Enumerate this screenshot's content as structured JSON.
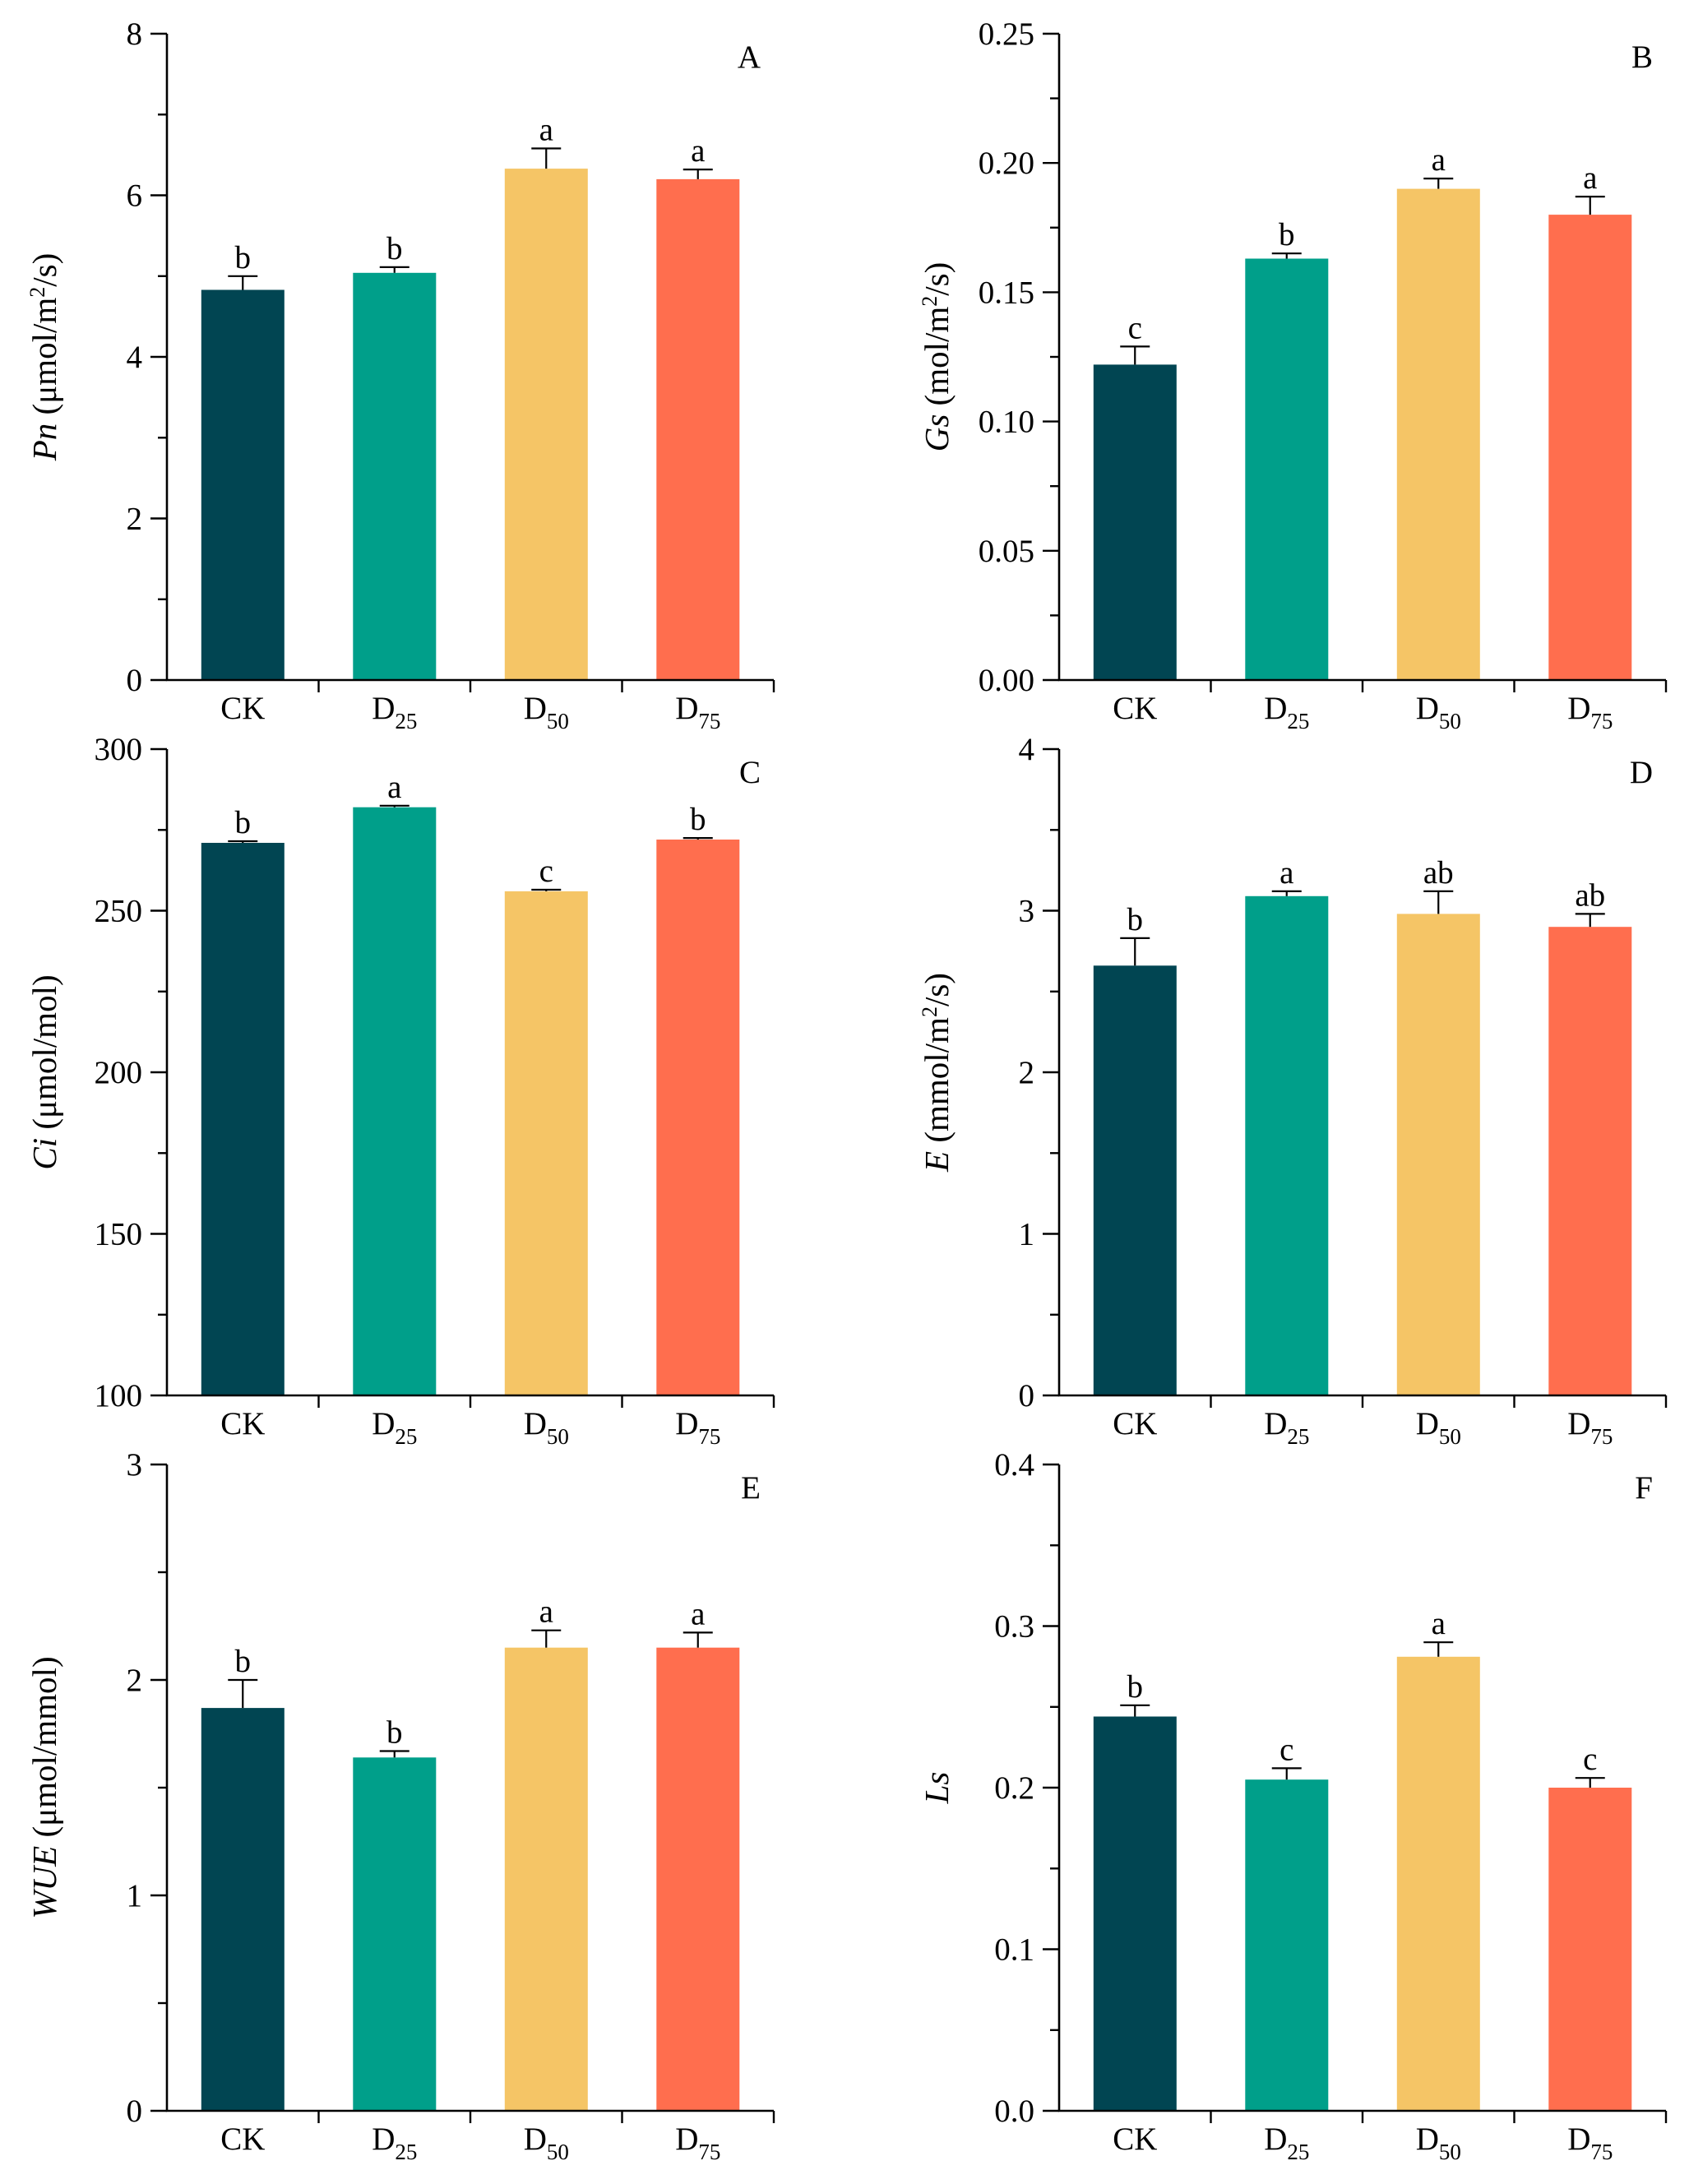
{
  "chart_data": [
    {
      "type": "bar",
      "panel": "A",
      "ylabel": [
        {
          "t": "Pn",
          "italic": true
        },
        {
          "t": " (μmol/m"
        },
        {
          "t": "2",
          "sup": true
        },
        {
          "t": "/s)"
        }
      ],
      "ylim": [
        0,
        8
      ],
      "major_step": 2,
      "minor_step": 1,
      "decimals": 0,
      "categories": [
        {
          "base": "CK",
          "sub": ""
        },
        {
          "base": "D",
          "sub": "25"
        },
        {
          "base": "D",
          "sub": "50"
        },
        {
          "base": "D",
          "sub": "75"
        }
      ],
      "values": [
        4.83,
        5.04,
        6.33,
        6.2
      ],
      "errors": [
        0.17,
        0.07,
        0.25,
        0.12
      ],
      "letters": [
        "b",
        "b",
        "a",
        "a"
      ],
      "colors": [
        "#014552",
        "#009F8A",
        "#F5C566",
        "#FF6E4E"
      ]
    },
    {
      "type": "bar",
      "panel": "B",
      "ylabel": [
        {
          "t": "Gs",
          "italic": true
        },
        {
          "t": " (mol/m"
        },
        {
          "t": "2",
          "sup": true
        },
        {
          "t": "/s)"
        }
      ],
      "ylim": [
        0,
        0.25
      ],
      "major_step": 0.05,
      "minor_step": 0.025,
      "decimals": 2,
      "categories": [
        {
          "base": "CK",
          "sub": ""
        },
        {
          "base": "D",
          "sub": "25"
        },
        {
          "base": "D",
          "sub": "50"
        },
        {
          "base": "D",
          "sub": "75"
        }
      ],
      "values": [
        0.122,
        0.163,
        0.19,
        0.18
      ],
      "errors": [
        0.007,
        0.002,
        0.004,
        0.007
      ],
      "letters": [
        "c",
        "b",
        "a",
        "a"
      ],
      "colors": [
        "#014552",
        "#009F8A",
        "#F5C566",
        "#FF6E4E"
      ]
    },
    {
      "type": "bar",
      "panel": "C",
      "ylabel": [
        {
          "t": "Ci",
          "italic": true
        },
        {
          "t": " (μmol/mol)"
        }
      ],
      "ylim": [
        100,
        300
      ],
      "major_step": 50,
      "minor_step": 25,
      "decimals": 0,
      "categories": [
        {
          "base": "CK",
          "sub": ""
        },
        {
          "base": "D",
          "sub": "25"
        },
        {
          "base": "D",
          "sub": "50"
        },
        {
          "base": "D",
          "sub": "75"
        }
      ],
      "values": [
        271,
        282,
        256,
        272
      ],
      "errors": [
        0.5,
        0.5,
        0.5,
        0.5
      ],
      "letters": [
        "b",
        "a",
        "c",
        "b"
      ],
      "colors": [
        "#014552",
        "#009F8A",
        "#F5C566",
        "#FF6E4E"
      ]
    },
    {
      "type": "bar",
      "panel": "D",
      "ylabel": [
        {
          "t": "E",
          "italic": true
        },
        {
          "t": " (mmol/m"
        },
        {
          "t": "2",
          "sup": true
        },
        {
          "t": "/s)"
        }
      ],
      "ylim": [
        0,
        4
      ],
      "major_step": 1,
      "minor_step": 0.5,
      "decimals": 0,
      "categories": [
        {
          "base": "CK",
          "sub": ""
        },
        {
          "base": "D",
          "sub": "25"
        },
        {
          "base": "D",
          "sub": "50"
        },
        {
          "base": "D",
          "sub": "75"
        }
      ],
      "values": [
        2.66,
        3.09,
        2.98,
        2.9
      ],
      "errors": [
        0.17,
        0.03,
        0.14,
        0.08
      ],
      "letters": [
        "b",
        "a",
        "ab",
        "ab"
      ],
      "colors": [
        "#014552",
        "#009F8A",
        "#F5C566",
        "#FF6E4E"
      ]
    },
    {
      "type": "bar",
      "panel": "E",
      "ylabel": [
        {
          "t": "WUE",
          "italic": true
        },
        {
          "t": " (μmol/mmol)"
        }
      ],
      "ylim": [
        0,
        3
      ],
      "major_step": 1,
      "minor_step": 0.5,
      "decimals": 0,
      "categories": [
        {
          "base": "CK",
          "sub": ""
        },
        {
          "base": "D",
          "sub": "25"
        },
        {
          "base": "D",
          "sub": "50"
        },
        {
          "base": "D",
          "sub": "75"
        }
      ],
      "values": [
        1.87,
        1.64,
        2.15,
        2.15
      ],
      "errors": [
        0.13,
        0.03,
        0.08,
        0.07
      ],
      "letters": [
        "b",
        "b",
        "a",
        "a"
      ],
      "colors": [
        "#014552",
        "#009F8A",
        "#F5C566",
        "#FF6E4E"
      ]
    },
    {
      "type": "bar",
      "panel": "F",
      "ylabel": [
        {
          "t": "Ls",
          "italic": true
        }
      ],
      "ylim": [
        0,
        0.4
      ],
      "major_step": 0.1,
      "minor_step": 0.05,
      "decimals": 1,
      "categories": [
        {
          "base": "CK",
          "sub": ""
        },
        {
          "base": "D",
          "sub": "25"
        },
        {
          "base": "D",
          "sub": "50"
        },
        {
          "base": "D",
          "sub": "75"
        }
      ],
      "values": [
        0.244,
        0.205,
        0.281,
        0.2
      ],
      "errors": [
        0.007,
        0.007,
        0.009,
        0.006
      ],
      "letters": [
        "b",
        "c",
        "a",
        "c"
      ],
      "colors": [
        "#014552",
        "#009F8A",
        "#F5C566",
        "#FF6E4E"
      ]
    }
  ]
}
